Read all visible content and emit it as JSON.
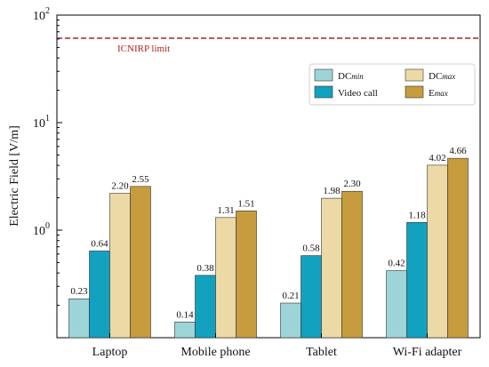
{
  "chart_data": {
    "type": "bar",
    "ylabel": "Electric Field [V/m]",
    "yscale": "log",
    "ylim": [
      0.1,
      100
    ],
    "ytick_labels": [
      {
        "value": 1,
        "base": "10",
        "exp": "0"
      },
      {
        "value": 10,
        "base": "10",
        "exp": "1"
      },
      {
        "value": 100,
        "base": "10",
        "exp": "2"
      }
    ],
    "grid": false,
    "legend_position": "upper-right",
    "categories": [
      "Laptop",
      "Mobile phone",
      "Tablet",
      "Wi-Fi adapter"
    ],
    "series": [
      {
        "name": "DC",
        "name_sub": "min",
        "color": "#9dd4d8",
        "values": [
          0.23,
          0.14,
          0.21,
          0.42
        ],
        "labels": [
          "0.23",
          "0.14",
          "0.21",
          "0.42"
        ]
      },
      {
        "name": "Video call",
        "name_sub": "",
        "color": "#13a1c0",
        "values": [
          0.64,
          0.38,
          0.58,
          1.18
        ],
        "labels": [
          "0.64",
          "0.38",
          "0.58",
          "1.18"
        ]
      },
      {
        "name": "DC",
        "name_sub": "max",
        "color": "#ecd9a6",
        "values": [
          2.2,
          1.31,
          1.98,
          4.02
        ],
        "labels": [
          "2.20",
          "1.31",
          "1.98",
          "4.02"
        ]
      },
      {
        "name": "E",
        "name_sub": "max",
        "color": "#c69c3e",
        "values": [
          2.55,
          1.51,
          2.3,
          4.66
        ],
        "labels": [
          "2.55",
          "1.51",
          "2.30",
          "4.66"
        ]
      }
    ],
    "reference_line": {
      "label": "ICNIRP limit",
      "value": 61,
      "color": "#b22222"
    }
  }
}
